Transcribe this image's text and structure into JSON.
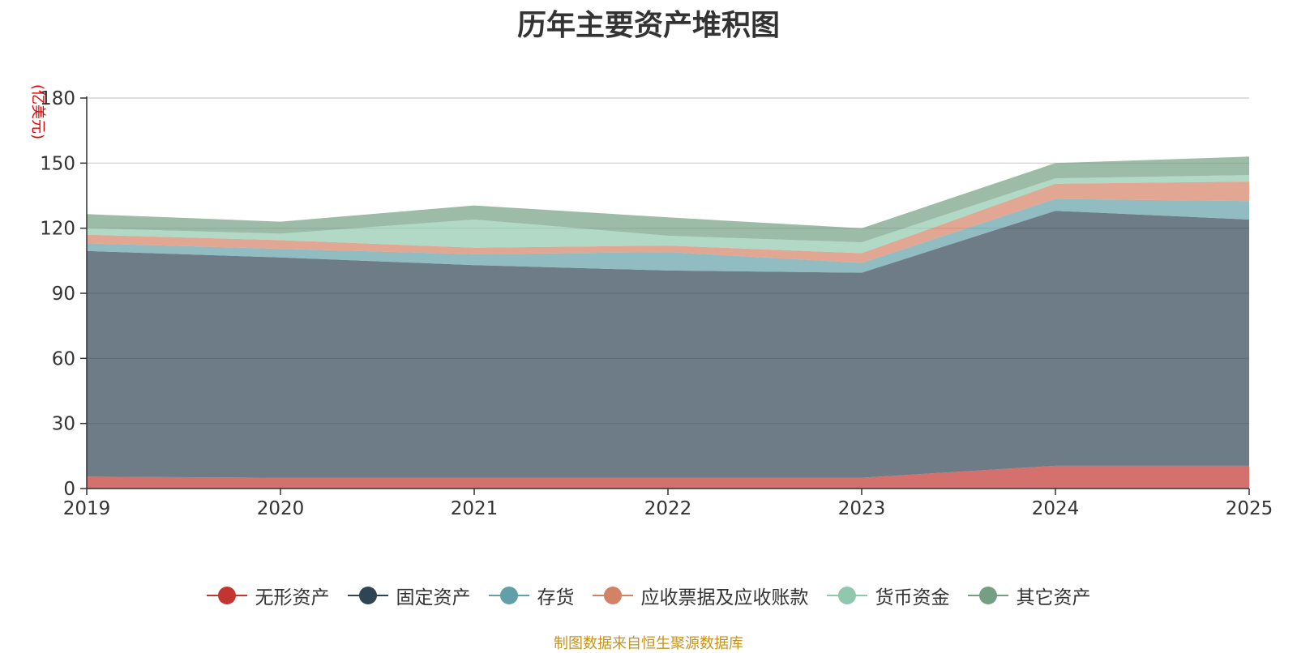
{
  "chart_data": {
    "type": "area",
    "stacked": true,
    "title": "历年主要资产堆积图",
    "ylabel": "(亿美元)",
    "xlabel": "",
    "categories": [
      "2019",
      "2020",
      "2021",
      "2022",
      "2023",
      "2024",
      "2025"
    ],
    "ylim": [
      0,
      180
    ],
    "yticks": [
      0,
      30,
      60,
      90,
      120,
      150,
      180
    ],
    "grid": true,
    "legend_position": "bottom",
    "series": [
      {
        "name": "无形资产",
        "color": "#c23531",
        "values": [
          5.5,
          5,
          5,
          5,
          5,
          10.5,
          10.5
        ]
      },
      {
        "name": "固定资产",
        "color": "#2f4554",
        "values": [
          104,
          101.5,
          98,
          95.5,
          94.5,
          117.5,
          113.5
        ]
      },
      {
        "name": "存货",
        "color": "#61a0a8",
        "values": [
          3.5,
          4,
          5,
          8.5,
          4.5,
          5.5,
          8.5
        ]
      },
      {
        "name": "应收票据及应收账款",
        "color": "#d48265",
        "values": [
          4,
          4,
          3,
          3,
          4.5,
          7,
          9
        ]
      },
      {
        "name": "货币资金",
        "color": "#91c7ae",
        "values": [
          3,
          3,
          13,
          4.5,
          5,
          2.5,
          3
        ]
      },
      {
        "name": "其它资产",
        "color": "#749f83",
        "values": [
          6.5,
          5.5,
          6.5,
          8.5,
          6.5,
          7,
          8.5
        ]
      }
    ]
  },
  "source_note": "制图数据来自恒生聚源数据库"
}
